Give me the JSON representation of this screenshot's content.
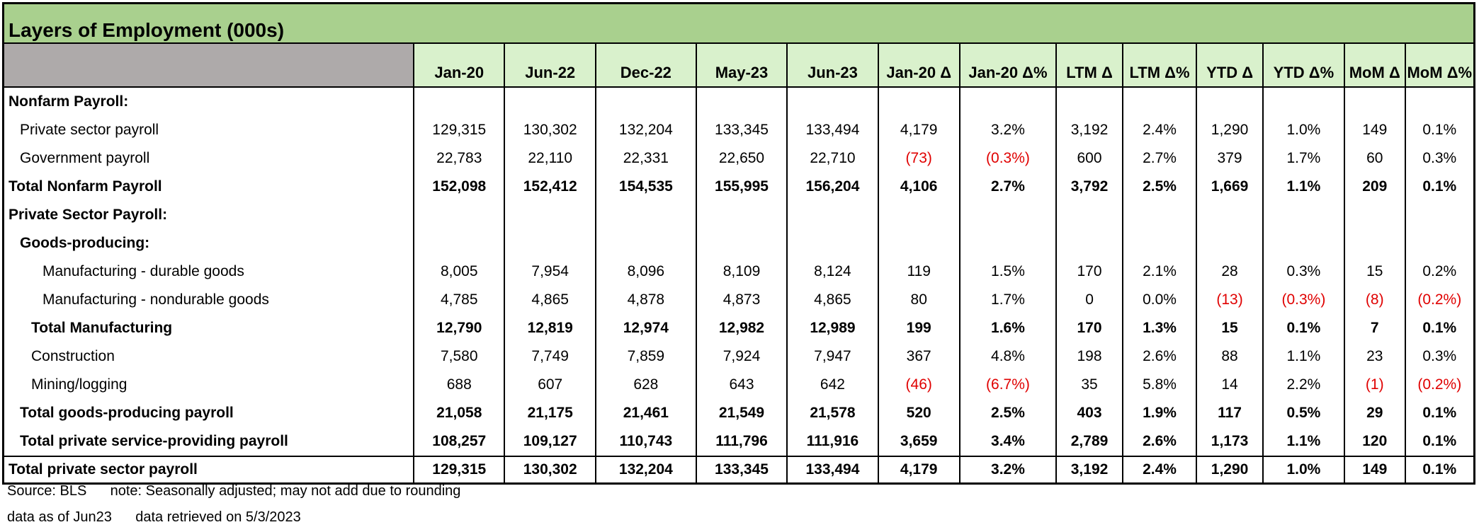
{
  "title": "Layers of Employment (000s)",
  "columns": [
    "Jan-20",
    "Jun-22",
    "Dec-22",
    "May-23",
    "Jun-23",
    "Jan-20 Δ",
    "Jan-20 Δ%",
    "LTM Δ",
    "LTM Δ%",
    "YTD Δ",
    "YTD Δ%",
    "MoM Δ",
    "MoM Δ%"
  ],
  "rows": [
    {
      "label": "Nonfarm Payroll:",
      "indent": 0,
      "bold": true,
      "values": [
        "",
        "",
        "",
        "",
        "",
        "",
        "",
        "",
        "",
        "",
        "",
        "",
        ""
      ]
    },
    {
      "label": "Private sector payroll",
      "indent": 1,
      "bold": false,
      "values": [
        "129,315",
        "130,302",
        "132,204",
        "133,345",
        "133,494",
        "4,179",
        "3.2%",
        "3,192",
        "2.4%",
        "1,290",
        "1.0%",
        "149",
        "0.1%"
      ]
    },
    {
      "label": "Government payroll",
      "indent": 1,
      "bold": false,
      "values": [
        "22,783",
        "22,110",
        "22,331",
        "22,650",
        "22,710",
        "(73)",
        "(0.3%)",
        "600",
        "2.7%",
        "379",
        "1.7%",
        "60",
        "0.3%"
      ]
    },
    {
      "label": "Total Nonfarm Payroll",
      "indent": 0,
      "bold": true,
      "values": [
        "152,098",
        "152,412",
        "154,535",
        "155,995",
        "156,204",
        "4,106",
        "2.7%",
        "3,792",
        "2.5%",
        "1,669",
        "1.1%",
        "209",
        "0.1%"
      ]
    },
    {
      "label": "Private Sector Payroll:",
      "indent": 0,
      "bold": true,
      "values": [
        "",
        "",
        "",
        "",
        "",
        "",
        "",
        "",
        "",
        "",
        "",
        "",
        ""
      ]
    },
    {
      "label": "Goods-producing:",
      "indent": 1,
      "bold": true,
      "values": [
        "",
        "",
        "",
        "",
        "",
        "",
        "",
        "",
        "",
        "",
        "",
        "",
        ""
      ]
    },
    {
      "label": "Manufacturing - durable goods",
      "indent": 3,
      "bold": false,
      "values": [
        "8,005",
        "7,954",
        "8,096",
        "8,109",
        "8,124",
        "119",
        "1.5%",
        "170",
        "2.1%",
        "28",
        "0.3%",
        "15",
        "0.2%"
      ]
    },
    {
      "label": "Manufacturing - nondurable goods",
      "indent": 3,
      "bold": false,
      "values": [
        "4,785",
        "4,865",
        "4,878",
        "4,873",
        "4,865",
        "80",
        "1.7%",
        "0",
        "0.0%",
        "(13)",
        "(0.3%)",
        "(8)",
        "(0.2%)"
      ]
    },
    {
      "label": "Total Manufacturing",
      "indent": 2,
      "bold": true,
      "values": [
        "12,790",
        "12,819",
        "12,974",
        "12,982",
        "12,989",
        "199",
        "1.6%",
        "170",
        "1.3%",
        "15",
        "0.1%",
        "7",
        "0.1%"
      ]
    },
    {
      "label": "Construction",
      "indent": 2,
      "bold": false,
      "values": [
        "7,580",
        "7,749",
        "7,859",
        "7,924",
        "7,947",
        "367",
        "4.8%",
        "198",
        "2.6%",
        "88",
        "1.1%",
        "23",
        "0.3%"
      ]
    },
    {
      "label": "Mining/logging",
      "indent": 2,
      "bold": false,
      "values": [
        "688",
        "607",
        "628",
        "643",
        "642",
        "(46)",
        "(6.7%)",
        "35",
        "5.8%",
        "14",
        "2.2%",
        "(1)",
        "(0.2%)"
      ]
    },
    {
      "label": "Total goods-producing payroll",
      "indent": 1,
      "bold": true,
      "values": [
        "21,058",
        "21,175",
        "21,461",
        "21,549",
        "21,578",
        "520",
        "2.5%",
        "403",
        "1.9%",
        "117",
        "0.5%",
        "29",
        "0.1%"
      ]
    },
    {
      "label": "Total private service-providing payroll",
      "indent": 1,
      "bold": true,
      "values": [
        "108,257",
        "109,127",
        "110,743",
        "111,796",
        "111,916",
        "3,659",
        "3.4%",
        "2,789",
        "2.6%",
        "1,173",
        "1.1%",
        "120",
        "0.1%"
      ]
    },
    {
      "label": "Total private sector payroll",
      "indent": 0,
      "bold": true,
      "values": [
        "129,315",
        "130,302",
        "132,204",
        "133,345",
        "133,494",
        "4,179",
        "3.2%",
        "3,192",
        "2.4%",
        "1,290",
        "1.0%",
        "149",
        "0.1%"
      ]
    }
  ],
  "footer": {
    "line1": "Source: BLS      note: Seasonally adjusted; may not add due to rounding",
    "line2": "data as of Jun23      data retrieved on 5/3/2023"
  },
  "colors": {
    "title_bg": "#a9d08e",
    "header_bg": "#d9f1cc",
    "corner_bg": "#aeaaaa",
    "negative": "#e00000"
  }
}
